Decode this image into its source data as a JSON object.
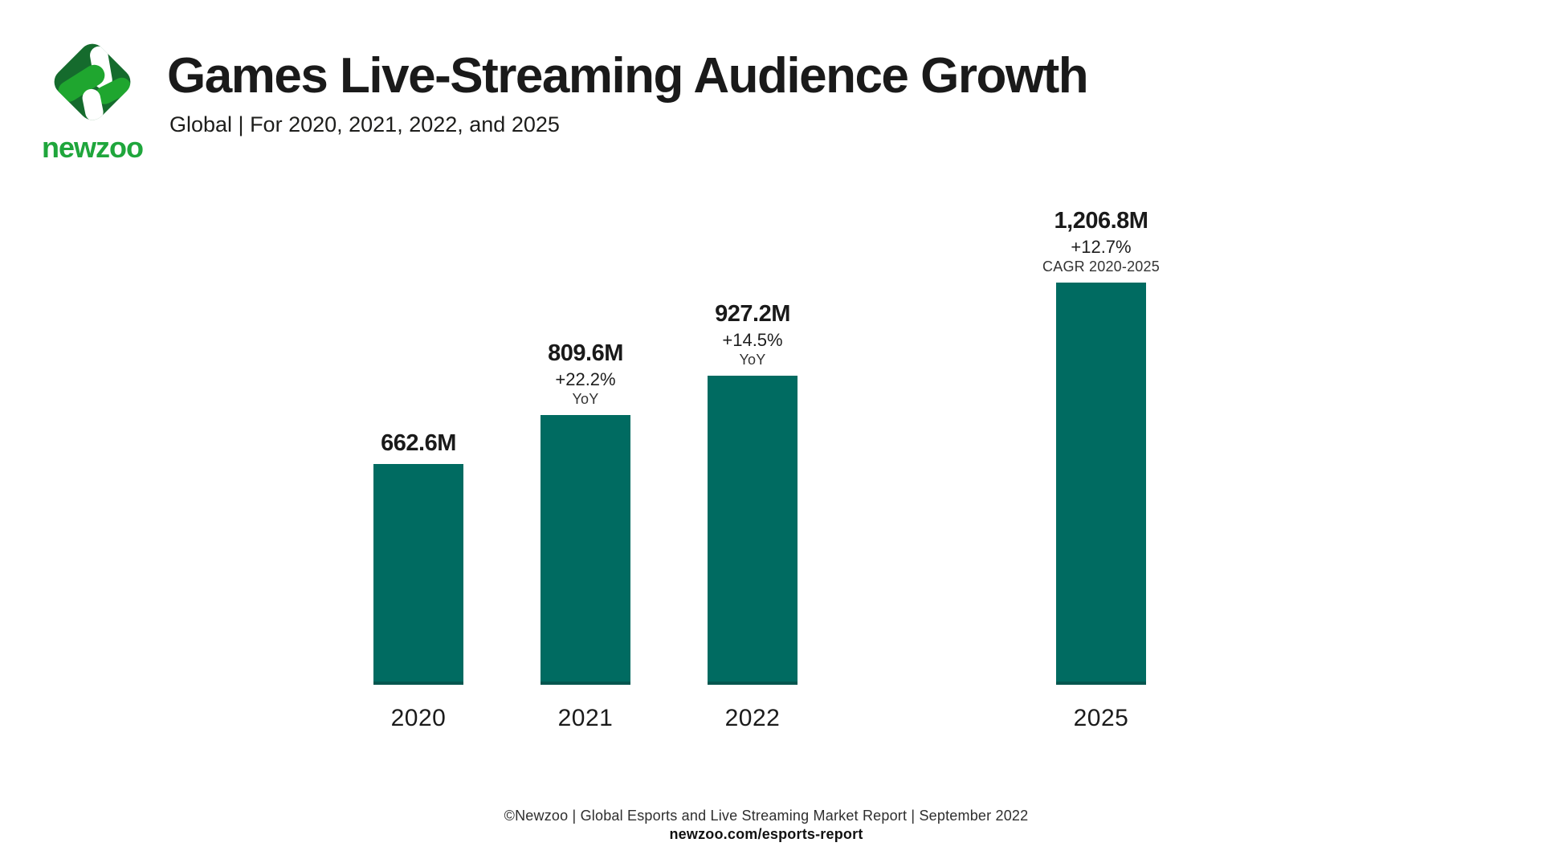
{
  "header": {
    "title": "Games Live-Streaming Audience Growth",
    "subtitle": "Global | For 2020, 2021, 2022, and 2025",
    "logo": {
      "brand": "newzoo",
      "diamond_color": "#156B2D",
      "bright_green": "#1FA62F",
      "capsule_white": "#ffffff",
      "wordmark_color": "#1FA63C"
    }
  },
  "chart_data": {
    "type": "bar",
    "title": "Games Live-Streaming Audience Growth",
    "subtitle": "Global | For 2020, 2021, 2022, and 2025",
    "unit": "M (millions of people)",
    "categories": [
      "2020",
      "2021",
      "2022",
      "2025"
    ],
    "values": [
      662.6,
      809.6,
      927.2,
      1206.8
    ],
    "bar_color": "#006B61",
    "ylim": [
      0,
      1300
    ],
    "grid": false,
    "legend_position": "none",
    "bars": [
      {
        "year": "2020",
        "value": 662.6,
        "value_label": "662.6M",
        "growth": "",
        "growth_period": ""
      },
      {
        "year": "2021",
        "value": 809.6,
        "value_label": "809.6M",
        "growth": "+22.2%",
        "growth_period": "YoY"
      },
      {
        "year": "2022",
        "value": 927.2,
        "value_label": "927.2M",
        "growth": "+14.5%",
        "growth_period": "YoY"
      },
      {
        "year": "2025",
        "value": 1206.8,
        "value_label": "1,206.8M",
        "growth": "+12.7%",
        "growth_period": "CAGR 2020-2025"
      }
    ]
  },
  "footer": {
    "source_line": "©Newzoo | Global Esports and Live Streaming Market Report | September 2022",
    "link": "newzoo.com/esports-report"
  }
}
